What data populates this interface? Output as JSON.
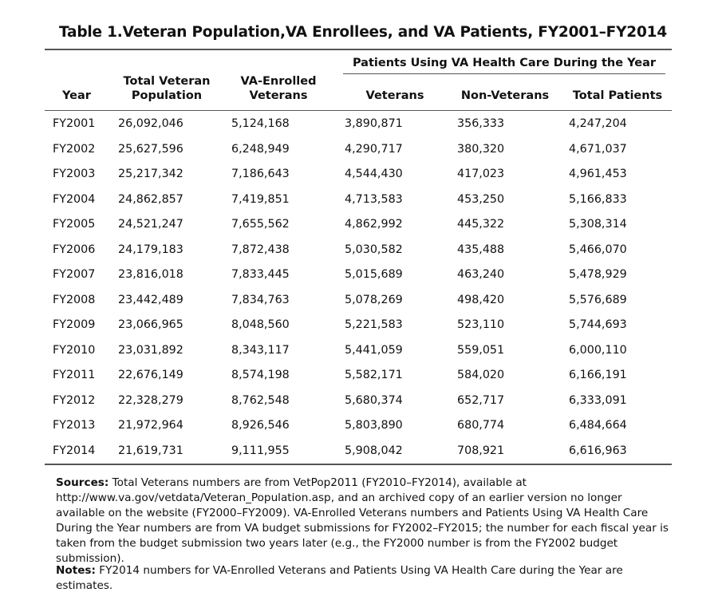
{
  "title": "Table 1.Veteran Population,VA Enrollees, and VA Patients, FY2001–FY2014",
  "group_header": "Patients Using VA Health Care During the Year",
  "columns": {
    "year": "Year",
    "total_vet_pop_1": "Total Veteran",
    "total_vet_pop_2": "Population",
    "va_enrolled_1": "VA-Enrolled",
    "va_enrolled_2": "Veterans",
    "veterans": "Veterans",
    "non_veterans": "Non-Veterans",
    "total_patients": "Total Patients"
  },
  "rows": [
    [
      "FY2001",
      "26,092,046",
      "5,124,168",
      "3,890,871",
      "356,333",
      "4,247,204"
    ],
    [
      "FY2002",
      "25,627,596",
      "6,248,949",
      "4,290,717",
      "380,320",
      "4,671,037"
    ],
    [
      "FY2003",
      "25,217,342",
      "7,186,643",
      "4,544,430",
      "417,023",
      "4,961,453"
    ],
    [
      "FY2004",
      "24,862,857",
      "7,419,851",
      "4,713,583",
      "453,250",
      "5,166,833"
    ],
    [
      "FY2005",
      "24,521,247",
      "7,655,562",
      "4,862,992",
      "445,322",
      "5,308,314"
    ],
    [
      "FY2006",
      "24,179,183",
      "7,872,438",
      "5,030,582",
      "435,488",
      "5,466,070"
    ],
    [
      "FY2007",
      "23,816,018",
      "7,833,445",
      "5,015,689",
      "463,240",
      "5,478,929"
    ],
    [
      "FY2008",
      "23,442,489",
      "7,834,763",
      "5,078,269",
      "498,420",
      "5,576,689"
    ],
    [
      "FY2009",
      "23,066,965",
      "8,048,560",
      "5,221,583",
      "523,110",
      "5,744,693"
    ],
    [
      "FY2010",
      "23,031,892",
      "8,343,117",
      "5,441,059",
      "559,051",
      "6,000,110"
    ],
    [
      "FY2011",
      "22,676,149",
      "8,574,198",
      "5,582,171",
      "584,020",
      "6,166,191"
    ],
    [
      "FY2012",
      "22,328,279",
      "8,762,548",
      "5,680,374",
      "652,717",
      "6,333,091"
    ],
    [
      "FY2013",
      "21,972,964",
      "8,926,546",
      "5,803,890",
      "680,774",
      "6,484,664"
    ],
    [
      "FY2014",
      "21,619,731",
      "9,111,955",
      "5,908,042",
      "708,921",
      "6,616,963"
    ]
  ],
  "sources_label": "Sources:",
  "sources_text": "Total Veterans numbers are from VetPop2011 (FY2010–FY2014), available at http://www.va.gov/vetdata/Veteran_Population.asp, and an archived copy of an earlier version no longer available on the website (FY2000–FY2009). VA-Enrolled Veterans numbers and Patients Using VA Health Care During the Year numbers are from VA budget submissions for FY2002–FY2015; the number for each fiscal year is taken from the budget submission two years later (e.g., the FY2000 number is from the FY2002 budget submission).",
  "notes_label": "Notes:",
  "notes_text": "FY2014 numbers for VA-Enrolled Veterans and Patients Using VA Health Care during the Year are estimates."
}
